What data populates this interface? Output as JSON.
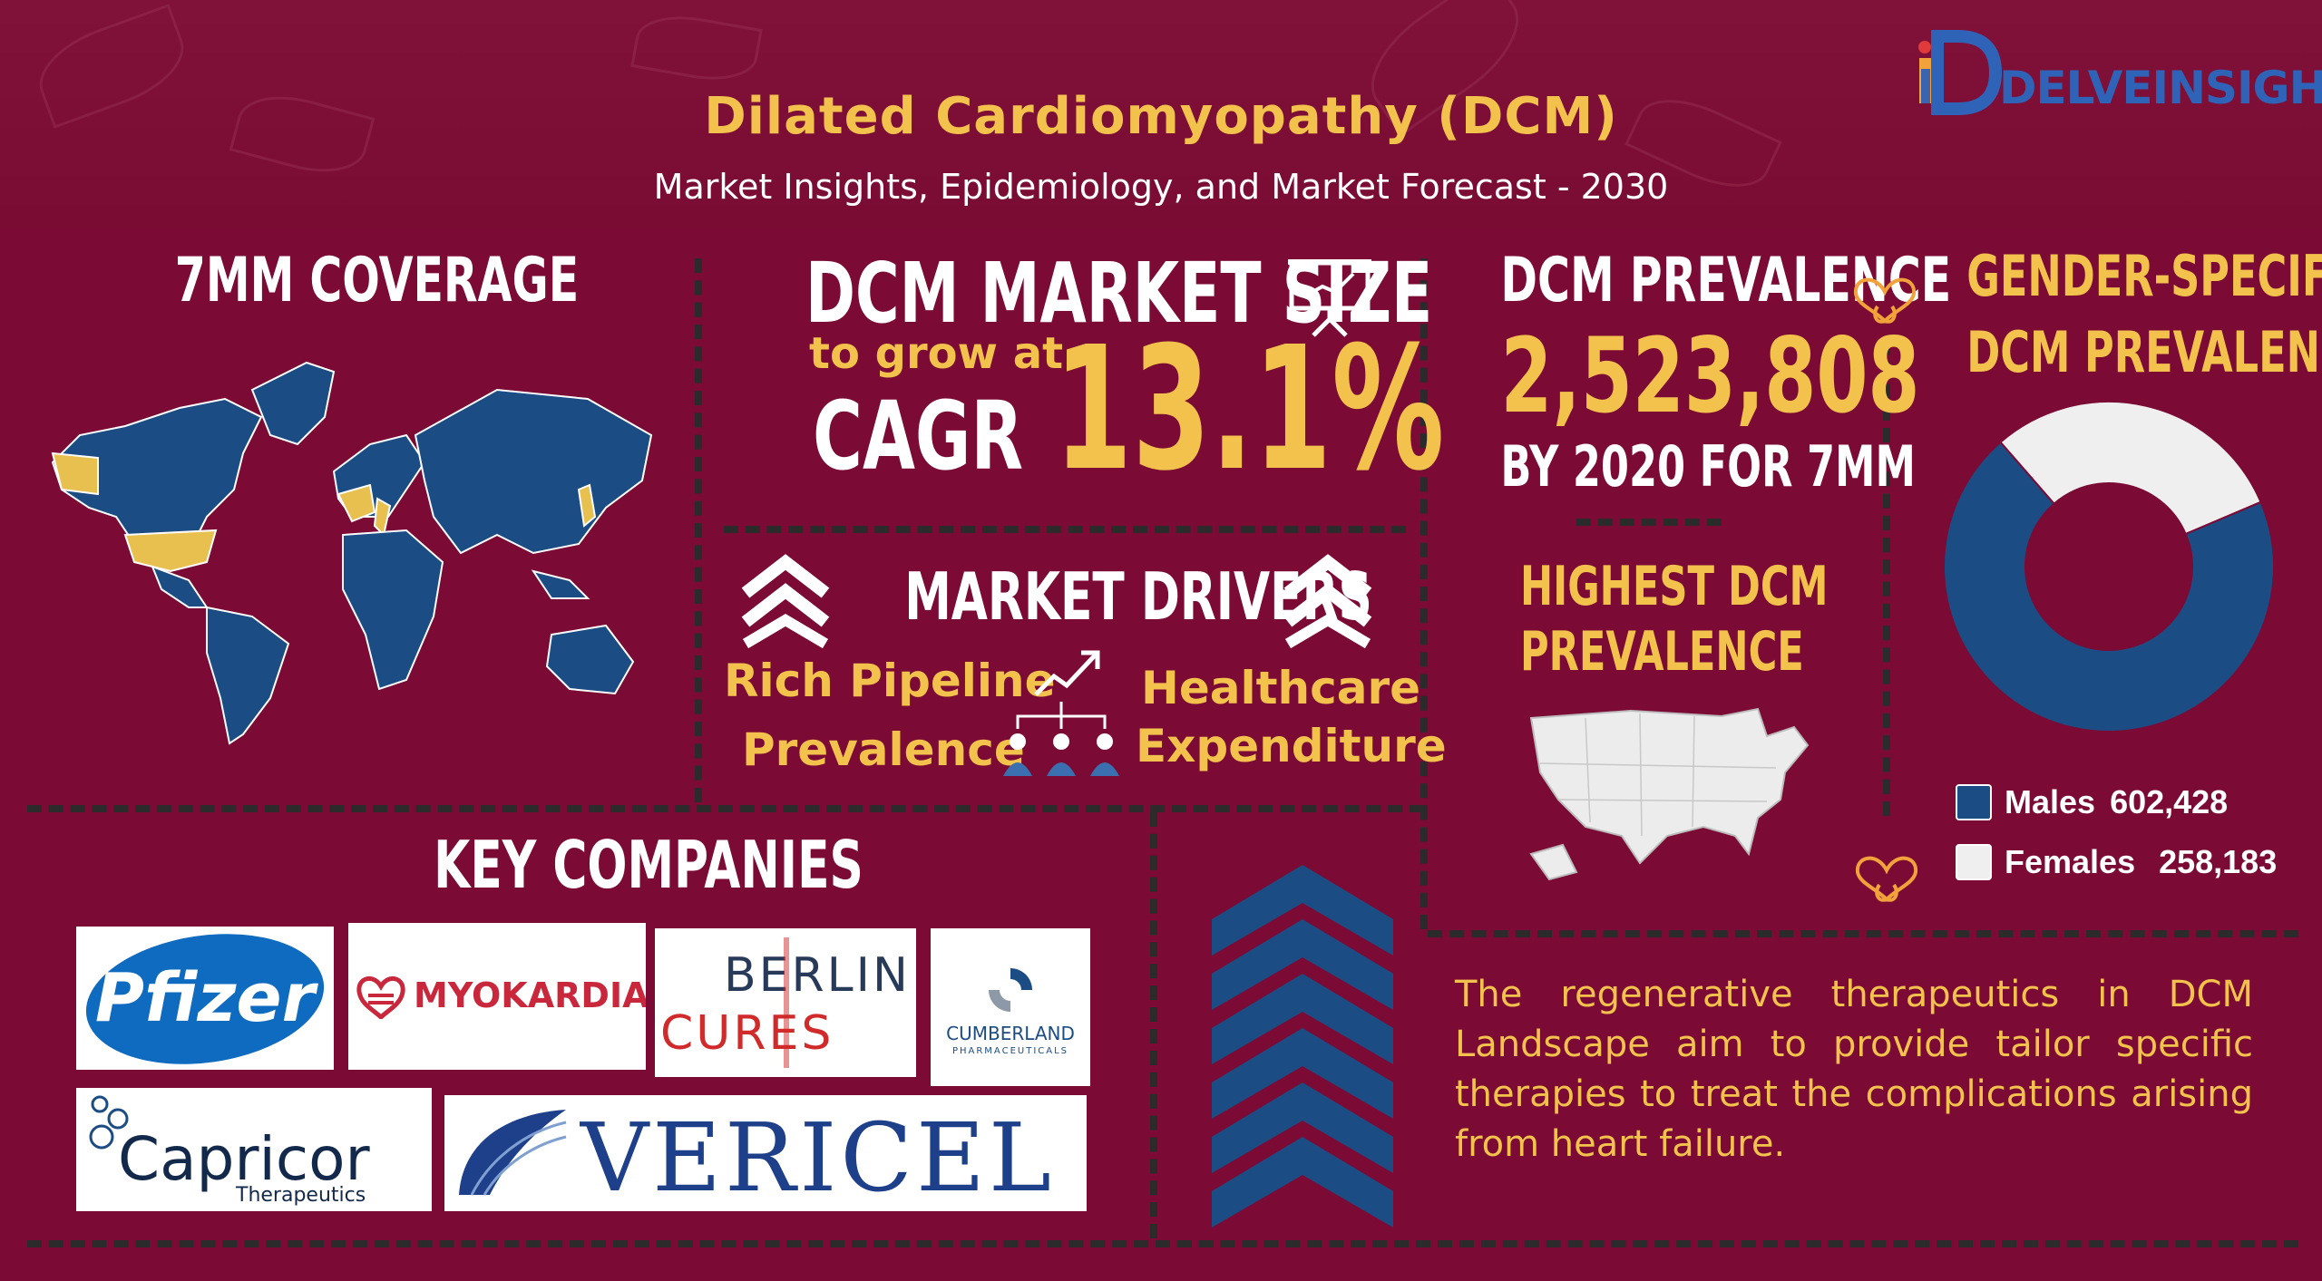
{
  "header": {
    "title": "Dilated Cardiomyopathy (DCM)",
    "subtitle": "Market Insights, Epidemiology, and Market Forecast - 2030",
    "brand": "DELVEINSIGHT"
  },
  "coverage": {
    "heading": "7MM COVERAGE"
  },
  "market_size": {
    "heading": "DCM MARKET SIZE",
    "to_grow": "to grow at",
    "cagr_label": "CAGR",
    "cagr_value": "13.1%"
  },
  "drivers": {
    "heading": "MARKET DRIVERS",
    "items": [
      "Rich Pipeline",
      "Prevalence",
      "Healthcare",
      "Expenditure"
    ]
  },
  "prevalence": {
    "heading": "DCM PREVALENCE",
    "value": "2,523,808",
    "note": "BY 2020 FOR 7MM"
  },
  "highest": {
    "line1": "HIGHEST DCM",
    "line2": "PREVALENCE"
  },
  "gender": {
    "line1": "GENDER-SPECIFIC",
    "line2": "DCM PREVALENCE",
    "legend": [
      {
        "label": "Males",
        "value": "602,428",
        "color": "#1c4c84"
      },
      {
        "label": "Females",
        "value": "258,183",
        "color": "#efefef"
      }
    ]
  },
  "chart_data": {
    "type": "pie",
    "donut": true,
    "categories": [
      "Males",
      "Females"
    ],
    "values": [
      602428,
      258183
    ],
    "colors": [
      "#1c4c84",
      "#efefef"
    ]
  },
  "companies": {
    "heading": "KEY COMPANIES",
    "logos": [
      "Pfizer",
      "MYOKARDIA",
      "BERLIN",
      "CURES",
      "CUMBERLAND",
      "PHARMACEUTICALS",
      "Capricor",
      "Therapeutics",
      "VERICEL"
    ]
  },
  "note": {
    "text": "The regenerative therapeutics in DCM Landscape aim to provide tailor specific therapies to treat the complications arising from heart failure."
  },
  "colors": {
    "background": "#7b0b34",
    "accent": "#f2c24c",
    "navy": "#1c4c84"
  }
}
